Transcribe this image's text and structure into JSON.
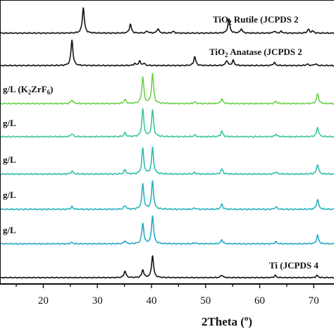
{
  "chart_data": {
    "type": "line",
    "xlabel": "2Theta (",
    "xlabel_unit": "o",
    "xlabel_close": ")",
    "xlim": [
      12,
      74
    ],
    "x_ticks": [
      "20",
      "30",
      "40",
      "50",
      "60",
      "70"
    ],
    "tick_values": [
      20,
      30,
      40,
      50,
      60,
      70
    ],
    "grid": false,
    "series": [
      {
        "label_parts": [
          {
            "text": "TiO"
          },
          {
            "text": "2",
            "sub": true
          },
          {
            "text": " Rutile (JCPDS 2"
          }
        ],
        "color": "#111111",
        "peaks": [
          [
            27.4,
            1.0
          ],
          [
            36.1,
            0.35
          ],
          [
            39.2,
            0.08
          ],
          [
            41.2,
            0.18
          ],
          [
            44.0,
            0.07
          ],
          [
            54.3,
            0.55
          ],
          [
            56.6,
            0.17
          ],
          [
            62.7,
            0.08
          ],
          [
            64.0,
            0.07
          ],
          [
            69.0,
            0.15
          ],
          [
            69.8,
            0.08
          ]
        ]
      },
      {
        "label_parts": [
          {
            "text": "TiO"
          },
          {
            "text": "2",
            "sub": true
          },
          {
            "text": " Anatase (JCPDS 2"
          }
        ],
        "color": "#111111",
        "peaks": [
          [
            25.3,
            1.0
          ],
          [
            36.9,
            0.07
          ],
          [
            37.8,
            0.17
          ],
          [
            38.6,
            0.08
          ],
          [
            48.0,
            0.35
          ],
          [
            53.9,
            0.2
          ],
          [
            55.1,
            0.2
          ],
          [
            62.7,
            0.12
          ],
          [
            68.8,
            0.06
          ],
          [
            70.3,
            0.07
          ]
        ]
      },
      {
        "label_parts": [
          {
            "text": "g/L (K"
          },
          {
            "text": "2",
            "sub": true
          },
          {
            "text": "ZrF"
          },
          {
            "text": "6",
            "sub": true
          },
          {
            "text": ")"
          }
        ],
        "color": "#6bd24a",
        "peaks": [
          [
            25.3,
            0.12
          ],
          [
            35.1,
            0.14
          ],
          [
            38.4,
            0.9
          ],
          [
            40.2,
            1.0
          ],
          [
            48.0,
            0.06
          ],
          [
            53.0,
            0.16
          ],
          [
            63.0,
            0.08
          ],
          [
            70.7,
            0.33
          ]
        ]
      },
      {
        "label_parts": [
          {
            "text": "g/L"
          }
        ],
        "color": "#3ec79b",
        "peaks": [
          [
            25.3,
            0.1
          ],
          [
            35.1,
            0.12
          ],
          [
            38.4,
            0.88
          ],
          [
            40.2,
            0.85
          ],
          [
            48.0,
            0.05
          ],
          [
            53.0,
            0.18
          ],
          [
            63.0,
            0.08
          ],
          [
            70.7,
            0.3
          ]
        ]
      },
      {
        "label_parts": [
          {
            "text": "g/L"
          }
        ],
        "color": "#33bdb0",
        "peaks": [
          [
            25.3,
            0.1
          ],
          [
            35.1,
            0.14
          ],
          [
            38.4,
            0.85
          ],
          [
            40.2,
            0.88
          ],
          [
            48.0,
            0.05
          ],
          [
            53.0,
            0.17
          ],
          [
            63.0,
            0.08
          ],
          [
            70.7,
            0.33
          ]
        ]
      },
      {
        "label_parts": [
          {
            "text": "g/L"
          }
        ],
        "color": "#2cb3c0",
        "peaks": [
          [
            25.3,
            0.08
          ],
          [
            35.1,
            0.12
          ],
          [
            38.4,
            0.82
          ],
          [
            40.2,
            0.9
          ],
          [
            48.0,
            0.04
          ],
          [
            53.0,
            0.16
          ],
          [
            63.0,
            0.08
          ],
          [
            70.7,
            0.32
          ]
        ]
      },
      {
        "label_parts": [
          {
            "text": "g/L"
          }
        ],
        "color": "#2aa9c8",
        "peaks": [
          [
            25.3,
            0.05
          ],
          [
            35.1,
            0.1
          ],
          [
            38.4,
            0.72
          ],
          [
            40.2,
            1.0
          ],
          [
            48.0,
            0.04
          ],
          [
            53.0,
            0.14
          ],
          [
            63.0,
            0.07
          ],
          [
            70.7,
            0.3
          ]
        ]
      },
      {
        "label_parts": [
          {
            "text": "Ti (JCPDS 4"
          }
        ],
        "color": "#111111",
        "peaks": [
          [
            35.1,
            0.3
          ],
          [
            38.4,
            0.35
          ],
          [
            40.2,
            1.0
          ],
          [
            53.0,
            0.12
          ],
          [
            62.9,
            0.1
          ],
          [
            70.6,
            0.1
          ]
        ]
      }
    ]
  }
}
